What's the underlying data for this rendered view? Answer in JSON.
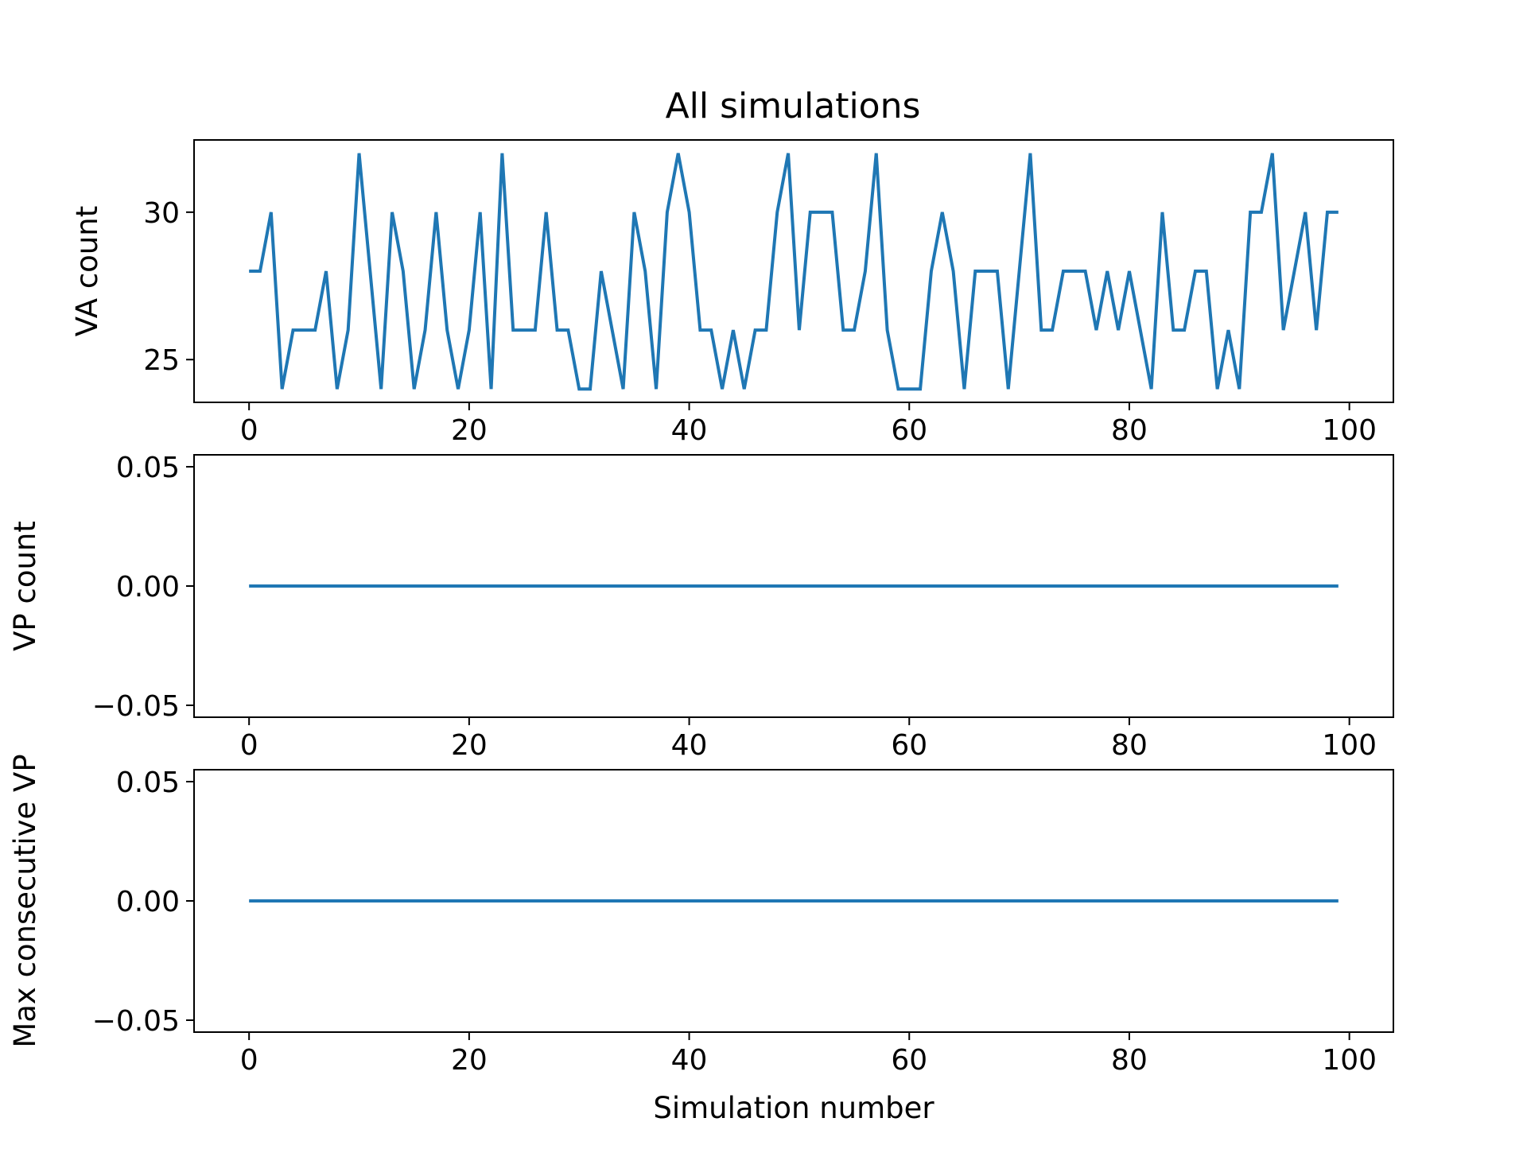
{
  "figure": {
    "title": "All simulations",
    "line_color": "#1f77b4",
    "axis_color": "#000000",
    "background": "#ffffff"
  },
  "chart_data": [
    {
      "type": "line",
      "title": "All simulations",
      "xlabel": "",
      "ylabel": "VA count",
      "xlim": [
        -5,
        104
      ],
      "ylim": [
        23.55,
        32.45
      ],
      "xticks": [
        0,
        20,
        40,
        60,
        80,
        100
      ],
      "xtick_labels": [
        "0",
        "20",
        "40",
        "60",
        "80",
        "100"
      ],
      "yticks": [
        25,
        30
      ],
      "ytick_labels": [
        "25",
        "30"
      ],
      "grid": false,
      "series": [
        {
          "color": "#1f77b4",
          "x": [
            0,
            1,
            2,
            3,
            4,
            5,
            6,
            7,
            8,
            9,
            10,
            11,
            12,
            13,
            14,
            15,
            16,
            17,
            18,
            19,
            20,
            21,
            22,
            23,
            24,
            25,
            26,
            27,
            28,
            29,
            30,
            31,
            32,
            33,
            34,
            35,
            36,
            37,
            38,
            39,
            40,
            41,
            42,
            43,
            44,
            45,
            46,
            47,
            48,
            49,
            50,
            51,
            52,
            53,
            54,
            55,
            56,
            57,
            58,
            59,
            60,
            61,
            62,
            63,
            64,
            65,
            66,
            67,
            68,
            69,
            70,
            71,
            72,
            73,
            74,
            75,
            76,
            77,
            78,
            79,
            80,
            81,
            82,
            83,
            84,
            85,
            86,
            87,
            88,
            89,
            90,
            91,
            92,
            93,
            94,
            95,
            96,
            97,
            98,
            99
          ],
          "y": [
            28,
            28,
            30,
            24,
            26,
            26,
            26,
            28,
            24,
            26,
            32,
            28,
            24,
            30,
            28,
            24,
            26,
            30,
            26,
            24,
            26,
            30,
            24,
            32,
            26,
            26,
            26,
            30,
            26,
            26,
            24,
            24,
            28,
            26,
            24,
            30,
            28,
            24,
            30,
            32,
            30,
            26,
            26,
            24,
            26,
            24,
            26,
            26,
            30,
            32,
            26,
            30,
            30,
            30,
            26,
            26,
            28,
            32,
            26,
            24,
            24,
            24,
            28,
            30,
            28,
            24,
            28,
            28,
            28,
            24,
            28,
            32,
            26,
            26,
            28,
            28,
            28,
            26,
            28,
            26,
            28,
            26,
            24,
            30,
            26,
            26,
            28,
            28,
            24,
            26,
            24,
            30,
            30,
            32,
            26,
            28,
            30,
            26,
            30,
            30
          ]
        }
      ]
    },
    {
      "type": "line",
      "xlabel": "",
      "ylabel": "VP count",
      "xlim": [
        -5,
        104
      ],
      "ylim": [
        -0.055,
        0.055
      ],
      "xticks": [
        0,
        20,
        40,
        60,
        80,
        100
      ],
      "xtick_labels": [
        "0",
        "20",
        "40",
        "60",
        "80",
        "100"
      ],
      "yticks": [
        0.05,
        0.0,
        -0.05
      ],
      "ytick_labels": [
        "0.05",
        "0.00",
        "−0.05"
      ],
      "grid": false,
      "series": [
        {
          "color": "#1f77b4",
          "x": [
            0,
            99
          ],
          "y": [
            0,
            0
          ]
        }
      ]
    },
    {
      "type": "line",
      "xlabel": "Simulation number",
      "ylabel": "Max consecutive VP",
      "xlim": [
        -5,
        104
      ],
      "ylim": [
        -0.055,
        0.055
      ],
      "xticks": [
        0,
        20,
        40,
        60,
        80,
        100
      ],
      "xtick_labels": [
        "0",
        "20",
        "40",
        "60",
        "80",
        "100"
      ],
      "yticks": [
        0.05,
        0.0,
        -0.05
      ],
      "ytick_labels": [
        "0.05",
        "0.00",
        "−0.05"
      ],
      "grid": false,
      "series": [
        {
          "color": "#1f77b4",
          "x": [
            0,
            99
          ],
          "y": [
            0,
            0
          ]
        }
      ]
    }
  ]
}
